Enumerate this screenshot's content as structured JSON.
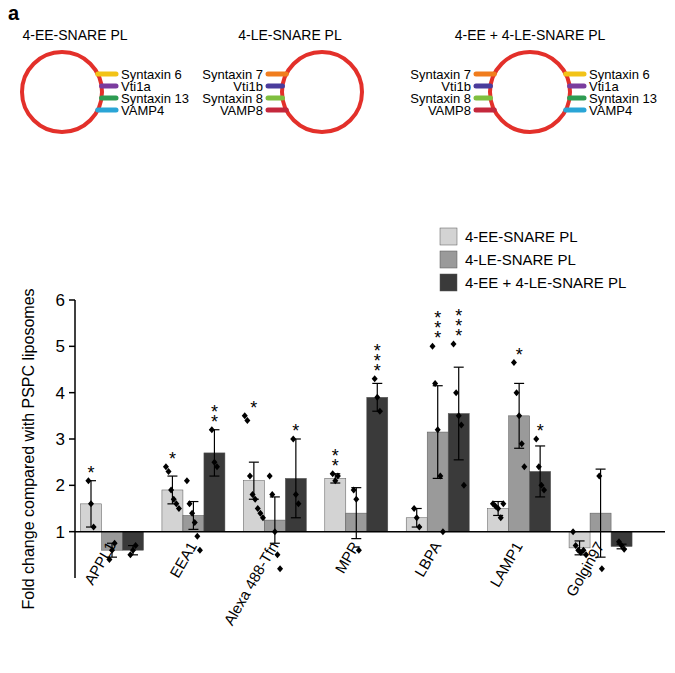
{
  "panel_label": "a",
  "diagram": {
    "liposomes": [
      {
        "title": "4-EE-SNARE PL",
        "snares_left": [],
        "snares_right": [
          {
            "label": "Syntaxin 6",
            "color": "#f2c318"
          },
          {
            "label": "Vti1a",
            "color": "#7a3c9e"
          },
          {
            "label": "Syntaxin 13",
            "color": "#2e9c52"
          },
          {
            "label": "VAMP4",
            "color": "#2aa5d6"
          }
        ]
      },
      {
        "title": "4-LE-SNARE PL",
        "snares_left": [
          {
            "label": "Syntaxin 7",
            "color": "#f07d1e"
          },
          {
            "label": "Vti1b",
            "color": "#4a3c9c"
          },
          {
            "label": "Syntaxin 8",
            "color": "#7fbf3f"
          },
          {
            "label": "VAMP8",
            "color": "#c4283c"
          }
        ],
        "snares_right": []
      },
      {
        "title": "4-EE + 4-LE-SNARE PL",
        "snares_left": [
          {
            "label": "Syntaxin 7",
            "color": "#f07d1e"
          },
          {
            "label": "Vti1b",
            "color": "#4a3c9c"
          },
          {
            "label": "Syntaxin 8",
            "color": "#7fbf3f"
          },
          {
            "label": "VAMP8",
            "color": "#c4283c"
          }
        ],
        "snares_right": [
          {
            "label": "Syntaxin 6",
            "color": "#f2c318"
          },
          {
            "label": "Vti1a",
            "color": "#7a3c9e"
          },
          {
            "label": "Syntaxin 13",
            "color": "#2e9c52"
          },
          {
            "label": "VAMP4",
            "color": "#2aa5d6"
          }
        ]
      }
    ]
  },
  "chart_data": {
    "type": "bar",
    "y_label": "Fold change compared with PSPC liposomes",
    "categories": [
      "APPL1",
      "EEA1",
      "Alexa 488-Tfn",
      "MPR",
      "LBPA",
      "LAMP1",
      "Golgin97"
    ],
    "ylim": [
      0,
      6
    ],
    "yticks": [
      1,
      2,
      3,
      4,
      5,
      6
    ],
    "baseline": 1,
    "legend": "top-right",
    "marker": "diamond",
    "series": [
      {
        "name": "4-EE-SNARE PL",
        "color": "#d3d3d3",
        "values": [
          1.6,
          1.9,
          2.1,
          2.15,
          1.3,
          1.5,
          0.65
        ],
        "errors": [
          0.5,
          0.3,
          0.4,
          0.1,
          0.2,
          0.15,
          0.15
        ],
        "points": [
          [
            2.1,
            1.6,
            1.1
          ],
          [
            2.4,
            2.3,
            1.9,
            1.7,
            1.6,
            1.5
          ],
          [
            3.5,
            3.4,
            2.2,
            1.8,
            1.7,
            1.5,
            1.4,
            1.3
          ],
          [
            2.25,
            2.1,
            2.2
          ],
          [
            1.5,
            1.3,
            1.1
          ],
          [
            1.6,
            1.55,
            1.5,
            1.3,
            1.6
          ],
          [
            1.0,
            0.7,
            0.6,
            0.55,
            0.6,
            0.5
          ]
        ],
        "significance": [
          "*",
          "*",
          "*",
          "**",
          null,
          null,
          null
        ]
      },
      {
        "name": "4-LE-SNARE PL",
        "color": "#9a9a9a",
        "values": [
          0.6,
          1.35,
          1.25,
          1.4,
          3.15,
          3.5,
          1.4
        ],
        "errors": [
          0.15,
          0.3,
          0.5,
          0.55,
          1.0,
          0.7,
          0.95
        ],
        "points": [
          [
            0.4,
            0.6,
            0.75
          ],
          [
            2.1,
            1.6,
            1.4,
            1.2,
            0.9,
            0.6
          ],
          [
            2.2,
            1.8,
            1.0,
            0.5,
            0.2
          ],
          [
            1.9,
            1.7,
            0.6
          ],
          [
            5.0,
            4.2,
            3.2,
            2.2,
            1.0
          ],
          [
            4.65,
            4.0,
            3.5,
            2.9,
            2.4
          ],
          [
            2.2,
            0.2
          ]
        ],
        "significance": [
          null,
          null,
          null,
          null,
          "***",
          "*",
          null
        ]
      },
      {
        "name": "4-EE + 4-LE-SNARE PL",
        "color": "#3a3a3a",
        "values": [
          0.6,
          2.7,
          2.15,
          3.9,
          3.55,
          2.3,
          0.68
        ],
        "errors": [
          0.1,
          0.5,
          0.85,
          0.3,
          1.0,
          0.55,
          0.05
        ],
        "points": [
          [
            0.5,
            0.6,
            0.7
          ],
          [
            3.2,
            2.5,
            2.4
          ],
          [
            3.0,
            1.8,
            1.6
          ],
          [
            4.3,
            3.9,
            3.6
          ],
          [
            5.05,
            4.0,
            3.5,
            3.3,
            2.0
          ],
          [
            3.0,
            2.4,
            2.0,
            1.9
          ],
          [
            0.78,
            0.7,
            0.62
          ]
        ],
        "significance": [
          null,
          "**",
          "*",
          "***",
          "***",
          "*",
          null
        ]
      }
    ]
  }
}
